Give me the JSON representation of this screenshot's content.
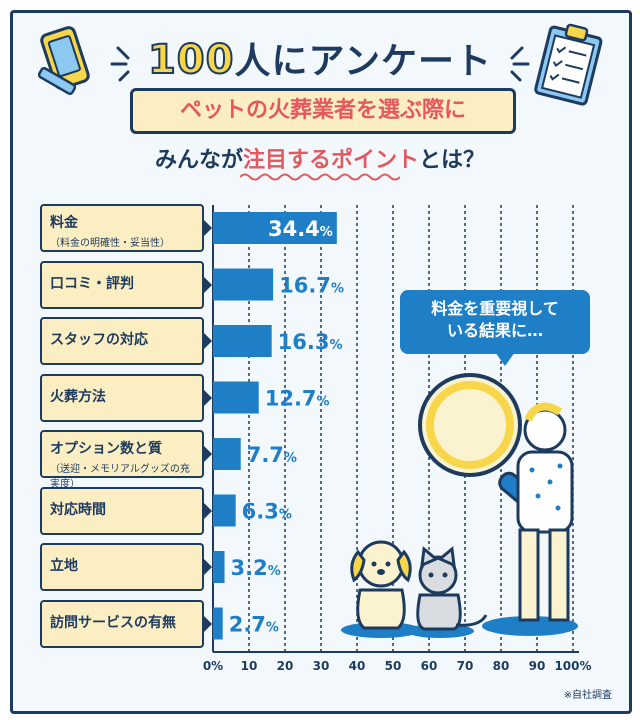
{
  "header": {
    "title_number": "100",
    "title_text": "人にアンケート",
    "banner_text": "ペットの火葬業者を選ぶ際に",
    "subtitle_pre": "みんなが",
    "subtitle_highlight": "注目するポイント",
    "subtitle_post": "とは？"
  },
  "bubble_text_line1": "料金を重要視して",
  "bubble_text_line2": "いる結果に…",
  "source_note": "※自社調査",
  "colors": {
    "navy": "#1d3a5f",
    "bar": "#1e7fc7",
    "cream": "#fbeec2",
    "accent": "#e3595e"
  },
  "chart_data": {
    "type": "bar",
    "orientation": "horizontal",
    "categories": [
      {
        "label": "料金",
        "note": "（料金の明確性・妥当性）"
      },
      {
        "label": "口コミ・評判",
        "note": ""
      },
      {
        "label": "スタッフの対応",
        "note": ""
      },
      {
        "label": "火葬方法",
        "note": ""
      },
      {
        "label": "オプション数と質",
        "note": "（送迎・メモリアルグッズの充実度）"
      },
      {
        "label": "対応時間",
        "note": ""
      },
      {
        "label": "立地",
        "note": ""
      },
      {
        "label": "訪問サービスの有無",
        "note": ""
      }
    ],
    "values": [
      34.4,
      16.7,
      16.3,
      12.7,
      7.7,
      6.3,
      3.2,
      2.7
    ],
    "value_unit": "%",
    "x_ticks": [
      "0%",
      "10",
      "20",
      "30",
      "40",
      "50",
      "60",
      "70",
      "80",
      "90",
      "100%"
    ],
    "xlim": [
      0,
      100
    ],
    "grid": true
  }
}
